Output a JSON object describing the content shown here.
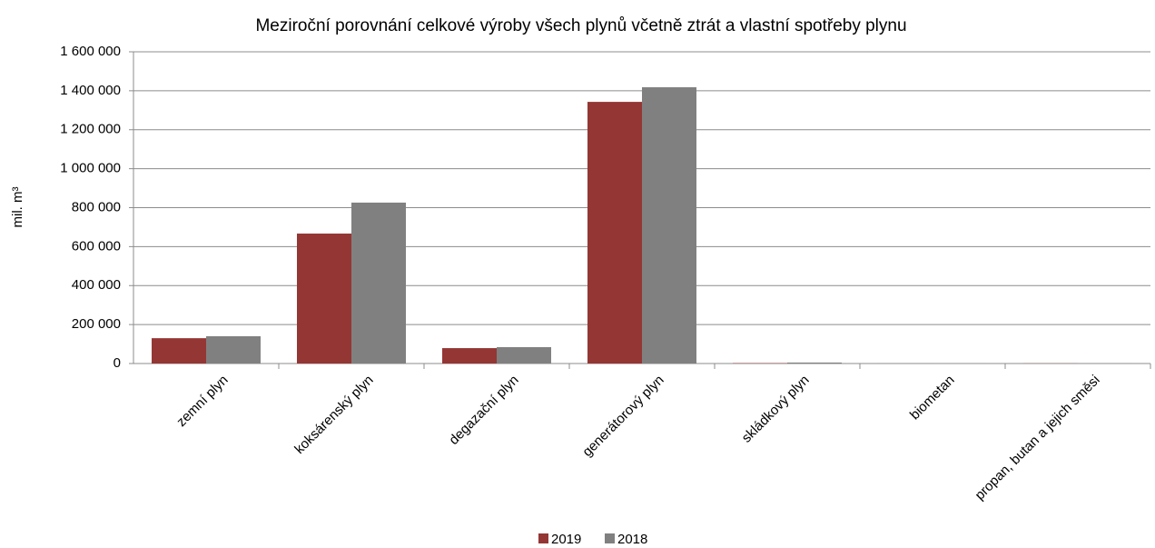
{
  "chart_data": {
    "type": "bar",
    "title": "Meziroční porovnání celkové výroby všech plynů včetně ztrát a vlastní spotřeby plynu",
    "y_label": "mil. m³",
    "categories": [
      "zemní plyn",
      "koksárenský plyn",
      "degazační plyn",
      "generátorový plyn",
      "skládkový plyn",
      "biometan",
      "propan, butan a jejich směsi"
    ],
    "series": [
      {
        "name": "2019",
        "color": "#943634",
        "values": [
          130000,
          667000,
          79000,
          1343000,
          2000,
          100,
          500
        ]
      },
      {
        "name": "2018",
        "color": "#808080",
        "values": [
          140000,
          826000,
          84000,
          1418000,
          5000,
          100,
          500
        ]
      }
    ],
    "ylim": [
      0,
      1600000
    ],
    "yticks": [
      0,
      {
        "value": 200000,
        "label": "200 000"
      },
      {
        "value": 400000,
        "label": "400 000"
      },
      {
        "value": 600000,
        "label": "600 000"
      },
      {
        "value": 800000,
        "label": "800 000"
      },
      {
        "value": 1000000,
        "label": "1 000 000"
      },
      {
        "value": 1200000,
        "label": "1 200 000"
      },
      {
        "value": 1400000,
        "label": "1 400 000"
      },
      {
        "value": 1600000,
        "label": "1 600 000"
      }
    ],
    "grid": true,
    "legend": "bottom"
  }
}
